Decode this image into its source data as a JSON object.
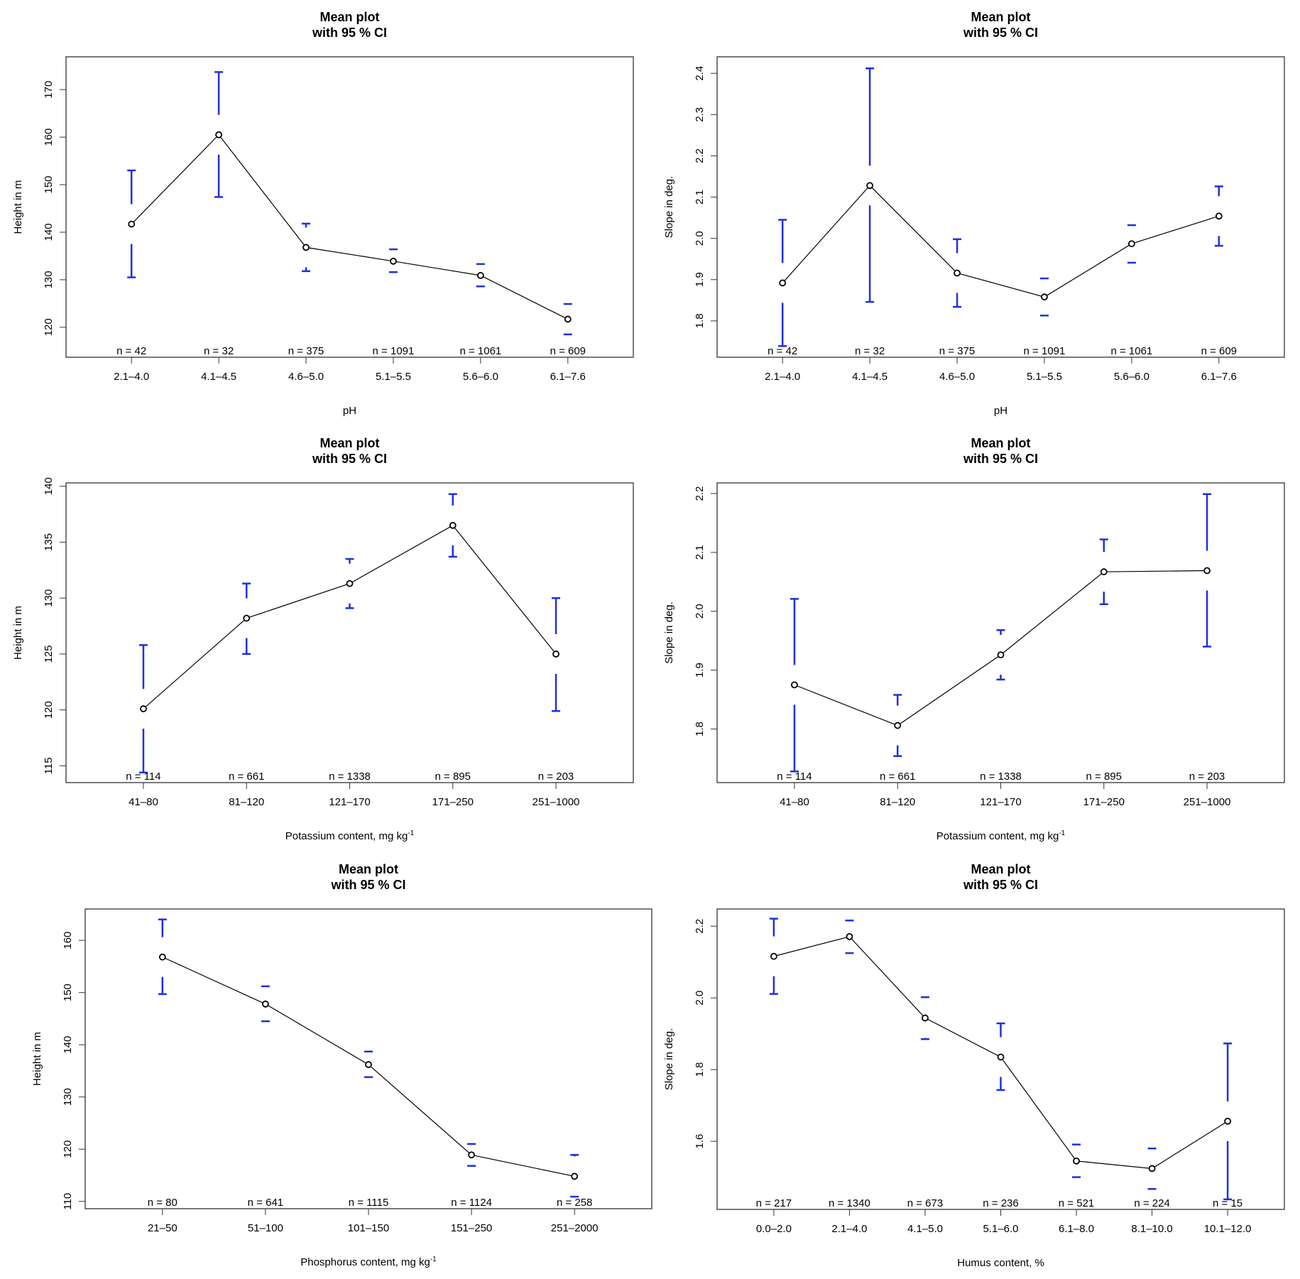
{
  "colors": {
    "ci": "#1f2fe0",
    "mean": "#000000",
    "frame": "#333333"
  },
  "chart_data": [
    {
      "type": "line",
      "title": "Mean plot\nwith 95 % CI",
      "xlabel": "pH",
      "xlabel_superscript": "",
      "ylabel": "Height in m",
      "categories": [
        "2.1–4.0",
        "4.1–4.5",
        "4.6–5.0",
        "5.1–5.5",
        "5.6–6.0",
        "6.1–7.6"
      ],
      "n": [
        "n = 42",
        "n = 32",
        "n = 375",
        "n = 1091",
        "n = 1061",
        "n = 609"
      ],
      "mean": [
        141.7,
        160.5,
        136.8,
        133.9,
        130.9,
        121.7
      ],
      "ci_low": [
        130.5,
        147.4,
        131.8,
        131.6,
        128.6,
        118.5
      ],
      "ci_high": [
        153.0,
        173.7,
        141.8,
        136.4,
        133.3,
        124.9
      ],
      "ylim": [
        113.7,
        176.9
      ],
      "yticks": [
        120,
        130,
        140,
        150,
        160,
        170
      ],
      "ytick_labels": [
        "120",
        "130",
        "140",
        "150",
        "160",
        "170"
      ]
    },
    {
      "type": "line",
      "title": "Mean plot\nwith 95 % CI",
      "xlabel": "pH",
      "xlabel_superscript": "",
      "ylabel": "Slope in deg.",
      "categories": [
        "2.1–4.0",
        "4.1–4.5",
        "4.6–5.0",
        "5.1–5.5",
        "5.6–6.0",
        "6.1–7.6"
      ],
      "n": [
        "n = 42",
        "n = 32",
        "n = 375",
        "n = 1091",
        "n = 1061",
        "n = 609"
      ],
      "mean": [
        1.892,
        2.128,
        1.916,
        1.858,
        1.987,
        2.054
      ],
      "ci_low": [
        1.739,
        1.846,
        1.834,
        1.813,
        1.941,
        1.982
      ],
      "ci_high": [
        2.045,
        2.412,
        1.998,
        1.903,
        2.032,
        2.126
      ],
      "ylim": [
        1.712,
        2.44
      ],
      "yticks": [
        1.8,
        1.9,
        2.0,
        2.1,
        2.2,
        2.3,
        2.4
      ],
      "ytick_labels": [
        "1.8",
        "1.9",
        "2.0",
        "2.1",
        "2.2",
        "2.3",
        "2.4"
      ]
    },
    {
      "type": "line",
      "title": "Mean plot\nwith 95 % CI",
      "xlabel": "Potassium content, mg kg",
      "xlabel_superscript": "-1",
      "ylabel": "Height in m",
      "categories": [
        "41–80",
        "81–120",
        "121–170",
        "171–250",
        "251–1000"
      ],
      "n": [
        "n = 114",
        "n = 661",
        "n = 1338",
        "n = 895",
        "n = 203"
      ],
      "mean": [
        120.1,
        128.2,
        131.3,
        136.5,
        125.0
      ],
      "ci_low": [
        114.4,
        125.0,
        129.1,
        133.7,
        119.9
      ],
      "ci_high": [
        125.8,
        131.3,
        133.5,
        139.3,
        130.0
      ],
      "ylim": [
        113.5,
        140.3
      ],
      "yticks": [
        115,
        120,
        125,
        130,
        135,
        140
      ],
      "ytick_labels": [
        "115",
        "120",
        "125",
        "130",
        "135",
        "140"
      ]
    },
    {
      "type": "line",
      "title": "Mean plot\nwith 95 % CI",
      "xlabel": "Potassium content, mg kg",
      "xlabel_superscript": "-1",
      "ylabel": "Slope in deg.",
      "categories": [
        "41–80",
        "81–120",
        "121–170",
        "171–250",
        "251–1000"
      ],
      "n": [
        "n = 114",
        "n = 661",
        "n = 1338",
        "n = 895",
        "n = 203"
      ],
      "mean": [
        1.875,
        1.806,
        1.926,
        2.067,
        2.069
      ],
      "ci_low": [
        1.728,
        1.754,
        1.884,
        2.012,
        1.94
      ],
      "ci_high": [
        2.021,
        1.858,
        1.968,
        2.122,
        2.199
      ],
      "ylim": [
        1.709,
        2.218
      ],
      "yticks": [
        1.8,
        1.9,
        2.0,
        2.1,
        2.2
      ],
      "ytick_labels": [
        "1.8",
        "1.9",
        "2.0",
        "2.1",
        "2.2"
      ]
    },
    {
      "type": "line",
      "title": "Mean plot\nwith 95 % CI",
      "xlabel": "Phosphorus content, mg kg",
      "xlabel_superscript": "-1",
      "ylabel": "Height in m",
      "categories": [
        "21–50",
        "51–100",
        "101–150",
        "151–250",
        "251–2000"
      ],
      "n": [
        "n = 80",
        "n = 641",
        "n = 1115",
        "n = 1124",
        "n = 258"
      ],
      "mean": [
        156.8,
        147.8,
        136.2,
        118.9,
        114.8
      ],
      "ci_low": [
        149.7,
        144.5,
        133.8,
        116.8,
        110.9
      ],
      "ci_high": [
        164.0,
        151.2,
        138.7,
        121.0,
        118.9
      ],
      "ylim": [
        108.6,
        166.0
      ],
      "yticks": [
        110,
        120,
        130,
        140,
        150,
        160
      ],
      "ytick_labels": [
        "110",
        "120",
        "130",
        "140",
        "150",
        "160"
      ]
    },
    {
      "type": "line",
      "title": "Mean plot\nwith 95 % CI",
      "xlabel": "Humus content, %",
      "xlabel_superscript": "",
      "ylabel": "Slope in deg.",
      "categories": [
        "0.0–2.0",
        "2.1–4.0",
        "4.1–5.0",
        "5.1–6.0",
        "6.1–8.0",
        "8.1–10.0",
        "10.1–12.0"
      ],
      "n": [
        "n = 217",
        "n = 1340",
        "n = 673",
        "n = 236",
        "n = 521",
        "n = 224",
        "n = 15"
      ],
      "mean": [
        2.116,
        2.171,
        1.944,
        1.835,
        1.545,
        1.524,
        1.656
      ],
      "ci_low": [
        2.011,
        2.125,
        1.885,
        1.743,
        1.5,
        1.467,
        1.438
      ],
      "ci_high": [
        2.221,
        2.216,
        2.002,
        1.929,
        1.591,
        1.58,
        1.873
      ],
      "ylim": [
        1.41,
        2.248
      ],
      "yticks": [
        1.6,
        1.8,
        2.0,
        2.2
      ],
      "ytick_labels": [
        "1.6",
        "1.8",
        "2.0",
        "2.2"
      ]
    }
  ]
}
